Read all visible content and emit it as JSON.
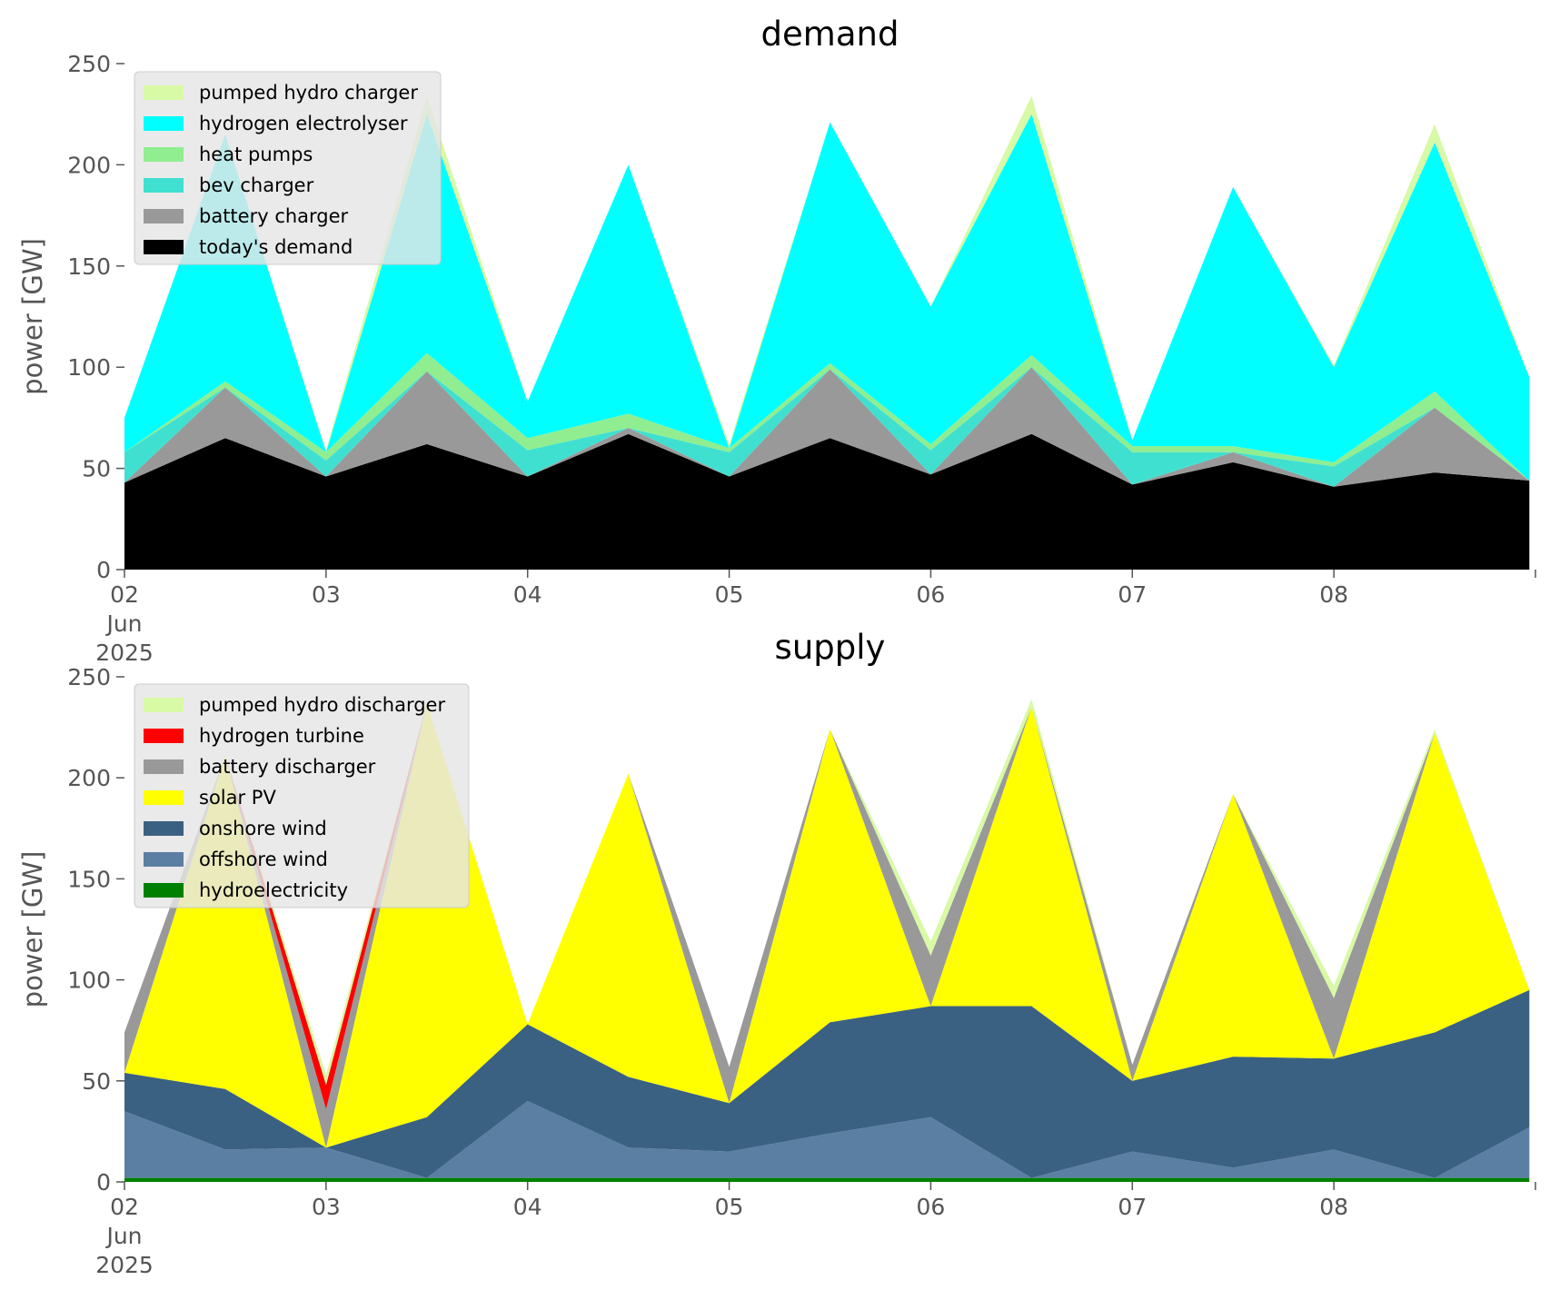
{
  "chart_data": [
    {
      "type": "area",
      "title": "demand",
      "ylabel": "power [GW]",
      "ylim": [
        0,
        250
      ],
      "yticks": [
        0,
        50,
        100,
        150,
        200,
        250
      ],
      "x_start": "2025-06-02",
      "x_end": "2025-06-09",
      "x": [
        2.0,
        2.5,
        3.0,
        3.5,
        4.0,
        4.5,
        5.0,
        5.5,
        6.0,
        6.5,
        7.0,
        7.5,
        8.0,
        8.5,
        8.97
      ],
      "xtick_labels": [
        [
          "02",
          "Jun",
          "2025"
        ],
        [
          "03"
        ],
        [
          "04"
        ],
        [
          "05"
        ],
        [
          "06"
        ],
        [
          "07"
        ],
        [
          "08"
        ]
      ],
      "legend_position": "top-left",
      "stacked": true,
      "series": [
        {
          "name": "today's demand",
          "color": "#000000",
          "values": [
            43,
            65,
            46,
            62,
            46,
            67,
            46,
            65,
            47,
            67,
            42,
            53,
            41,
            48,
            44
          ]
        },
        {
          "name": "battery charger",
          "color": "#999999",
          "values": [
            0,
            25,
            0,
            36,
            0,
            3,
            0,
            34,
            0,
            33,
            0,
            5,
            0,
            32,
            0
          ]
        },
        {
          "name": "bev charger",
          "color": "#40e0d0",
          "values": [
            15,
            0,
            8,
            0,
            13,
            0,
            12,
            0,
            12,
            0,
            16,
            0,
            10,
            0,
            0
          ]
        },
        {
          "name": "heat pumps",
          "color": "#90ee90",
          "values": [
            0,
            3,
            4,
            9,
            6,
            7,
            2,
            3,
            3,
            6,
            3,
            3,
            2,
            8,
            0
          ]
        },
        {
          "name": "hydrogen electrolyser",
          "color": "#00ffff",
          "values": [
            17,
            122,
            0,
            118,
            18,
            123,
            0,
            119,
            68,
            119,
            3,
            128,
            47,
            123,
            51
          ]
        },
        {
          "name": "pumped hydro charger",
          "color": "#d8f9a6",
          "values": [
            0,
            0,
            1,
            9,
            0,
            0,
            2,
            0,
            0,
            9,
            0,
            0,
            1,
            9,
            0
          ]
        }
      ]
    },
    {
      "type": "area",
      "title": "supply",
      "ylabel": "power [GW]",
      "ylim": [
        0,
        250
      ],
      "yticks": [
        0,
        50,
        100,
        150,
        200,
        250
      ],
      "x_start": "2025-06-02",
      "x_end": "2025-06-09",
      "x": [
        2.0,
        2.5,
        3.0,
        3.5,
        4.0,
        4.5,
        5.0,
        5.5,
        6.0,
        6.5,
        7.0,
        7.5,
        8.0,
        8.5,
        8.97
      ],
      "xtick_labels": [
        [
          "02",
          "Jun",
          "2025"
        ],
        [
          "03"
        ],
        [
          "04"
        ],
        [
          "05"
        ],
        [
          "06"
        ],
        [
          "07"
        ],
        [
          "08"
        ]
      ],
      "legend_position": "top-left",
      "stacked": true,
      "series": [
        {
          "name": "hydroelectricity",
          "color": "#008000",
          "values": [
            2,
            2,
            2,
            2,
            2,
            2,
            2,
            2,
            2,
            2,
            2,
            2,
            2,
            2,
            2
          ]
        },
        {
          "name": "offshore wind",
          "color": "#5b7fa3",
          "values": [
            33,
            14,
            15,
            0,
            38,
            15,
            13,
            22,
            30,
            0,
            13,
            5,
            14,
            0,
            25
          ]
        },
        {
          "name": "onshore wind",
          "color": "#3b6182",
          "values": [
            19,
            30,
            0,
            30,
            38,
            35,
            24,
            55,
            55,
            85,
            35,
            55,
            45,
            72,
            68
          ]
        },
        {
          "name": "solar PV",
          "color": "#ffff00",
          "values": [
            0,
            165,
            0,
            205,
            0,
            150,
            0,
            145,
            0,
            148,
            0,
            130,
            0,
            148,
            0
          ]
        },
        {
          "name": "battery discharger",
          "color": "#999999",
          "values": [
            20,
            0,
            19,
            0,
            0,
            0,
            18,
            0,
            25,
            0,
            8,
            0,
            30,
            0,
            0
          ]
        },
        {
          "name": "hydrogen turbine",
          "color": "#ff0000",
          "values": [
            0,
            0,
            12,
            0,
            0,
            0,
            0,
            0,
            0,
            0,
            0,
            0,
            0,
            0,
            0
          ]
        },
        {
          "name": "pumped hydro discharger",
          "color": "#d8f9a6",
          "values": [
            0,
            0,
            5,
            0,
            0,
            0,
            0,
            0,
            7,
            4,
            0,
            0,
            6,
            2,
            0
          ]
        }
      ]
    }
  ]
}
